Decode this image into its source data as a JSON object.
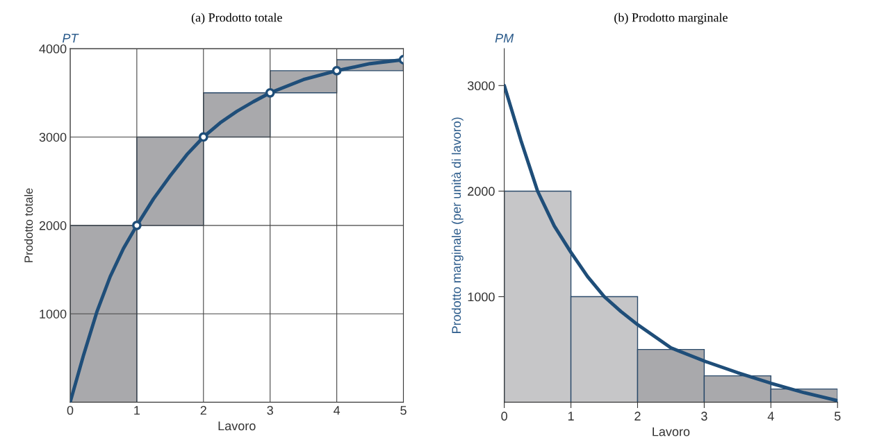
{
  "chart_data": [
    {
      "type": "bar",
      "title": "(a) Prodotto totale",
      "xlabel": "Lavoro",
      "ylabel": "Prodotto totale",
      "annotations": [
        "PT"
      ],
      "xlim": [
        0,
        5
      ],
      "xticks": [
        0,
        1,
        2,
        3,
        4,
        5
      ],
      "ylim": [
        0,
        4000
      ],
      "yticks": [
        1000,
        2000,
        3000,
        4000
      ],
      "grid": true,
      "series": [
        {
          "type": "bar",
          "x": [
            0.5,
            1.5,
            2.5,
            3.5,
            4.5
          ],
          "values": [
            2000,
            1000,
            500,
            250,
            125
          ],
          "base": [
            0,
            2000,
            3000,
            3500,
            3750
          ],
          "color": "#a9a9ac"
        },
        {
          "type": "line",
          "x": [
            0,
            0.2,
            0.4,
            0.6,
            0.8,
            1,
            1.25,
            1.5,
            1.75,
            2,
            2.25,
            2.5,
            2.75,
            3,
            3.5,
            4,
            4.5,
            5
          ],
          "values": [
            0,
            530,
            1020,
            1420,
            1740,
            2000,
            2300,
            2560,
            2800,
            3000,
            3160,
            3290,
            3400,
            3500,
            3650,
            3750,
            3830,
            3875
          ],
          "color": "#1f4e79",
          "marker": "none"
        },
        {
          "type": "scatter",
          "x": [
            1,
            2,
            3,
            4,
            5
          ],
          "values": [
            2000,
            3000,
            3500,
            3750,
            3875
          ],
          "color": "#1f4e79",
          "marker": "circle"
        }
      ]
    },
    {
      "type": "histogram",
      "title": "(b) Prodotto marginale",
      "xlabel": "Lavoro",
      "ylabel": "Prodotto marginale (per unità di lavoro)",
      "annotations": [
        "PM"
      ],
      "xlim": [
        0,
        5
      ],
      "xticks": [
        0,
        1,
        2,
        3,
        4,
        5
      ],
      "ylim": [
        0,
        3350
      ],
      "yticks": [
        1000,
        2000,
        3000
      ],
      "grid": false,
      "bins": [
        0,
        1,
        2,
        3,
        4,
        5
      ],
      "values": [
        2000,
        1000,
        500,
        250,
        125
      ],
      "colors": [
        "#c6c6c8",
        "#c6c6c8",
        "#a9a9ac",
        "#a9a9ac",
        "#a9a9ac"
      ],
      "series": [
        {
          "type": "line",
          "x": [
            0,
            0.25,
            0.5,
            0.75,
            1,
            1.25,
            1.5,
            1.75,
            2,
            2.5,
            3,
            3.5,
            4,
            4.5,
            5
          ],
          "values": [
            3000,
            2480,
            2000,
            1670,
            1420,
            1190,
            1000,
            860,
            735,
            515,
            390,
            280,
            180,
            90,
            15
          ],
          "color": "#1f4e79",
          "marker": "none"
        }
      ]
    }
  ]
}
